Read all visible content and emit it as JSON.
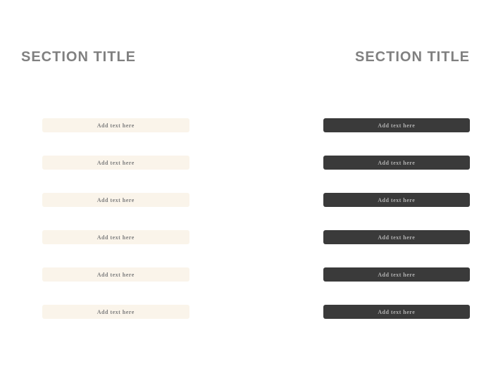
{
  "left": {
    "title": "SECTION TITLE",
    "item_bg": "#faf4ea",
    "item_text_color": "#808080",
    "items": [
      {
        "label": "Add text here"
      },
      {
        "label": "Add text here"
      },
      {
        "label": "Add text here"
      },
      {
        "label": "Add text here"
      },
      {
        "label": "Add text here"
      },
      {
        "label": "Add text here"
      }
    ]
  },
  "right": {
    "title": "SECTION TITLE",
    "item_bg": "#3a3a3a",
    "item_text_color": "#b0b0b0",
    "items": [
      {
        "label": "Add text here"
      },
      {
        "label": "Add text here"
      },
      {
        "label": "Add text here"
      },
      {
        "label": "Add text here"
      },
      {
        "label": "Add text here"
      },
      {
        "label": "Add text here"
      }
    ]
  },
  "styling": {
    "title_color": "#808080",
    "title_fontsize": 20,
    "item_fontsize": 8,
    "background": "#ffffff"
  }
}
